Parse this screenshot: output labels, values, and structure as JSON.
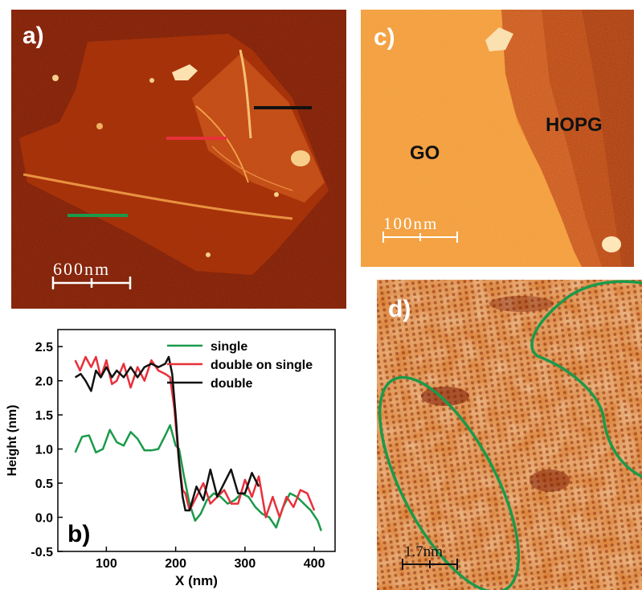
{
  "figure": {
    "panel_a": {
      "label": "a)",
      "scale_bar": "600nm",
      "profile_line_colors": {
        "single": "#1a9a4a",
        "double_on_single": "#e8303a",
        "double": "#111111"
      }
    },
    "panel_c": {
      "label": "c)",
      "region_labels": [
        "GO",
        "HOPG"
      ],
      "scale_bar": "100nm"
    },
    "panel_d": {
      "label": "d)",
      "scale_bar": "1.7nm",
      "outline_color": "#1a9a4a"
    },
    "colors": {
      "afm_dark": "#7a1a05",
      "afm_mid": "#c84a10",
      "afm_light": "#f7b14a"
    }
  },
  "chart_data": {
    "type": "line",
    "panel_label": "b)",
    "xlabel": "X (nm)",
    "ylabel": "Height (nm)",
    "xlim": [
      30,
      430
    ],
    "ylim": [
      -0.5,
      2.75
    ],
    "xticks": [
      100,
      200,
      300,
      400
    ],
    "yticks": [
      -0.5,
      0.0,
      0.5,
      1.0,
      1.5,
      2.0,
      2.5
    ],
    "ytick_labels": [
      "-0.5",
      "0.0",
      "0.5",
      "1.0",
      "1.5",
      "2.0",
      "2.5"
    ],
    "legend_position": "top-right",
    "series": [
      {
        "name": "single",
        "color": "#1a9a4a",
        "x": [
          55,
          65,
          75,
          85,
          95,
          105,
          115,
          125,
          135,
          145,
          155,
          165,
          175,
          185,
          192,
          200,
          205,
          212,
          220,
          228,
          236,
          245,
          255,
          265,
          275,
          285,
          295,
          305,
          315,
          325,
          335,
          345,
          355,
          365,
          375,
          385,
          395,
          405,
          410
        ],
        "y": [
          0.95,
          1.18,
          1.2,
          0.95,
          1.0,
          1.28,
          1.1,
          1.05,
          1.25,
          1.15,
          0.98,
          0.98,
          1.0,
          1.2,
          1.35,
          1.05,
          1.0,
          0.6,
          0.2,
          -0.05,
          0.05,
          0.25,
          0.35,
          0.3,
          0.2,
          0.25,
          0.35,
          0.3,
          0.15,
          0.05,
          0.0,
          -0.15,
          0.15,
          0.35,
          0.3,
          0.2,
          0.1,
          -0.05,
          -0.2
        ]
      },
      {
        "name": "double on single",
        "color": "#e8303a",
        "x": [
          55,
          62,
          70,
          78,
          85,
          92,
          100,
          108,
          115,
          125,
          135,
          145,
          155,
          165,
          175,
          185,
          192,
          198,
          204,
          210,
          214,
          220,
          230,
          240,
          250,
          260,
          270,
          280,
          290,
          300,
          310,
          320,
          330,
          340,
          350,
          360,
          370,
          380,
          390,
          400
        ],
        "y": [
          2.3,
          2.15,
          2.35,
          2.2,
          2.35,
          2.05,
          2.3,
          1.95,
          2.0,
          2.25,
          1.9,
          2.2,
          2.0,
          2.3,
          2.15,
          2.1,
          2.05,
          1.6,
          0.9,
          0.4,
          0.35,
          0.1,
          0.3,
          0.5,
          0.2,
          0.3,
          0.4,
          0.2,
          0.2,
          0.55,
          0.3,
          0.6,
          0.0,
          0.3,
          0.0,
          0.3,
          0.15,
          0.4,
          0.35,
          0.1
        ]
      },
      {
        "name": "double",
        "color": "#111111",
        "x": [
          55,
          63,
          70,
          78,
          85,
          92,
          100,
          108,
          115,
          125,
          135,
          145,
          155,
          165,
          175,
          185,
          190,
          195,
          200,
          205,
          210,
          214,
          220,
          230,
          240,
          250,
          260,
          270,
          280,
          290,
          300,
          310,
          320
        ],
        "y": [
          2.05,
          2.1,
          2.0,
          1.85,
          2.15,
          2.05,
          2.2,
          2.05,
          2.15,
          2.05,
          2.2,
          2.05,
          2.2,
          2.25,
          2.2,
          2.25,
          2.35,
          2.1,
          1.5,
          0.8,
          0.3,
          0.1,
          0.1,
          0.45,
          0.25,
          0.7,
          0.3,
          0.5,
          0.7,
          0.35,
          0.35,
          0.65,
          0.45
        ]
      }
    ]
  }
}
